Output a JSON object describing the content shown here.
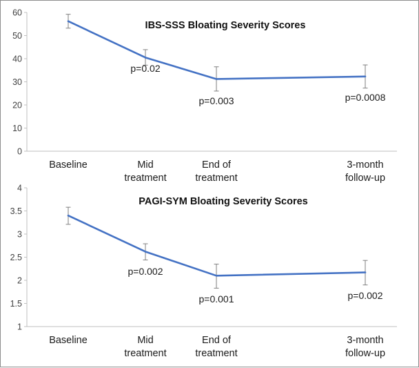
{
  "chart_data": [
    {
      "type": "line",
      "title": "IBS-SSS Bloating Severity Scores",
      "categories": [
        [
          "Baseline"
        ],
        [
          "Mid",
          "treatment"
        ],
        [
          "End of",
          "treatment"
        ],
        [
          "3-month",
          "follow-up"
        ]
      ],
      "category_positions": [
        0,
        1,
        2,
        4
      ],
      "values": [
        56.2,
        40.5,
        31.2,
        32.3
      ],
      "error_bars": [
        [
          53.2,
          59.2
        ],
        [
          37.2,
          43.9
        ],
        [
          26.0,
          36.5
        ],
        [
          27.3,
          37.3
        ]
      ],
      "annotations": [
        "",
        "p=0.02",
        "p=0.003",
        "p=0.0008"
      ],
      "ylim": [
        0,
        60
      ],
      "yticks": [
        0,
        10,
        20,
        30,
        40,
        50,
        60
      ],
      "ytick_labels": [
        "0",
        "10",
        "20",
        "30",
        "40",
        "50",
        "60"
      ],
      "xlabel": "",
      "ylabel": "",
      "line_color": "#4472c4"
    },
    {
      "type": "line",
      "title": "PAGI-SYM Bloating Severity Scores",
      "categories": [
        [
          "Baseline"
        ],
        [
          "Mid",
          "treatment"
        ],
        [
          "End of",
          "treatment"
        ],
        [
          "3-month",
          "follow-up"
        ]
      ],
      "category_positions": [
        0,
        1,
        2,
        4
      ],
      "values": [
        3.4,
        2.62,
        2.1,
        2.17
      ],
      "error_bars": [
        [
          3.21,
          3.58
        ],
        [
          2.44,
          2.79
        ],
        [
          1.83,
          2.35
        ],
        [
          1.9,
          2.43
        ]
      ],
      "annotations": [
        "",
        "p=0.002",
        "p=0.001",
        "p=0.002"
      ],
      "ylim": [
        1,
        4
      ],
      "yticks": [
        1,
        1.5,
        2,
        2.5,
        3,
        3.5,
        4
      ],
      "ytick_labels": [
        "1",
        "1.5",
        "2",
        "2.5",
        "3",
        "3.5",
        "4"
      ],
      "xlabel": "",
      "ylabel": "",
      "line_color": "#4472c4"
    }
  ]
}
